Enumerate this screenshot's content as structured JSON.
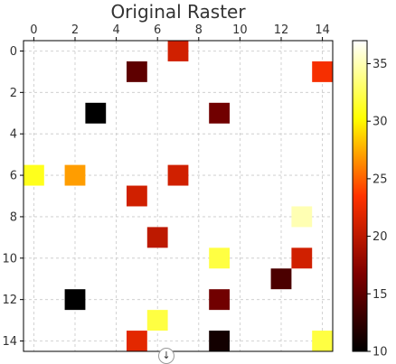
{
  "chart_data": {
    "type": "heatmap",
    "title": "Original Raster",
    "xlabel": "",
    "ylabel": "",
    "grid_size": 15,
    "x_ticks": [
      0,
      2,
      4,
      6,
      8,
      10,
      12,
      14
    ],
    "y_ticks": [
      0,
      2,
      4,
      6,
      8,
      10,
      12,
      14
    ],
    "xlim": [
      -0.5,
      14.5
    ],
    "ylim": [
      14.5,
      -0.5
    ],
    "x_axis_position": "top",
    "grid": true,
    "colormap": "afmhot",
    "colorbar": {
      "range": [
        10,
        37
      ],
      "ticks": [
        10,
        15,
        20,
        25,
        30,
        35
      ]
    },
    "cells": [
      {
        "row": 0,
        "col": 7,
        "value": 21
      },
      {
        "row": 1,
        "col": 5,
        "value": 15
      },
      {
        "row": 1,
        "col": 14,
        "value": 23
      },
      {
        "row": 3,
        "col": 3,
        "value": 10
      },
      {
        "row": 3,
        "col": 9,
        "value": 16
      },
      {
        "row": 6,
        "col": 0,
        "value": 31
      },
      {
        "row": 6,
        "col": 2,
        "value": 27
      },
      {
        "row": 6,
        "col": 7,
        "value": 21
      },
      {
        "row": 7,
        "col": 5,
        "value": 21
      },
      {
        "row": 8,
        "col": 13,
        "value": 35
      },
      {
        "row": 9,
        "col": 6,
        "value": 20
      },
      {
        "row": 10,
        "col": 9,
        "value": 32
      },
      {
        "row": 10,
        "col": 13,
        "value": 21
      },
      {
        "row": 11,
        "col": 12,
        "value": 14
      },
      {
        "row": 12,
        "col": 2,
        "value": 10
      },
      {
        "row": 12,
        "col": 9,
        "value": 16
      },
      {
        "row": 13,
        "col": 6,
        "value": 32
      },
      {
        "row": 14,
        "col": 5,
        "value": 22
      },
      {
        "row": 14,
        "col": 9,
        "value": 11
      },
      {
        "row": 14,
        "col": 14,
        "value": 32
      }
    ]
  },
  "ui": {
    "scroll_icon_glyph": "↓",
    "scroll_icon": "arrow-down-icon"
  }
}
